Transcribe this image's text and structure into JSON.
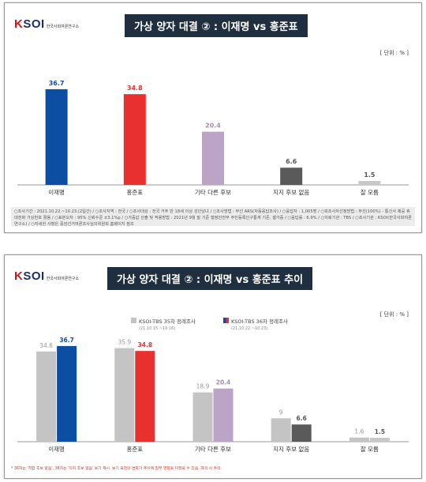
{
  "panel1": {
    "logo": {
      "main_k": "K",
      "main_rest": "SOI",
      "sub": "한국사회여론연구소"
    },
    "title": "가상 양자 대결 ② : 이재명 vs 홍준표",
    "unit": "[ 단위 : % ]",
    "notes": "○조사기간 : 2021.10.22.~10.23.(2일간) / ○조사지역 : 전국 / ○조사대상 : 전국 거주 만 18세 이상 성인남녀 / ○조사방법 : 무선 ARS(자동응답조사) / ○응답자 : 1,005명 / ○피조사자선정방법 : 무선(100%) - 통신사 제공 휴대전화 가상번호 활용 / ○표본오차 : 95% 신뢰수준 ±3.1%p / ○가중값 산출 및 적용방법 : 2021년 9월 말 기준 행정안전부 주민등록인구통계 기준, 셀가중 / ○응답률 : 6.9% / ○의뢰기관 : TBS / ○조사기관 : KSOI(한국사회여론연구소) / ○자세한 사항은 중앙선거여론조사심의위원회 홈페이지 참조"
  },
  "panel2": {
    "logo": {
      "main_k": "K",
      "main_rest": "SOI",
      "sub": "한국사회여론연구소"
    },
    "title": "가상 양자 대결 ② : 이재명 vs 홍준표 추이",
    "unit": "[ 단위 : % ]",
    "legend": [
      {
        "label": "KSOI-TBS 35차 정례조사",
        "sub": "(21.10.15.~10.16)"
      },
      {
        "label": "KSOI-TBS 36차 정례조사",
        "sub": "(21.10.22.~10.23)"
      }
    ],
    "footnote": "* 36차는 '적합 후보 없음', 36차는 '지지 후보 없음' 보기 제시. 보기 표현의 변화가 추이에 일부 영향을 미쳤을 수 있음. 해석 시 주의."
  },
  "colors": {
    "lee": "#0b4ea2",
    "hong": "#e8302e",
    "other": "#bba4c6",
    "none": "#5a5a5a",
    "dk": "#c8c8c8",
    "prev": "#c4c4c4"
  },
  "chart_data": [
    {
      "type": "bar",
      "title": "가상 양자 대결 ② : 이재명 vs 홍준표",
      "unit": "[ 단위 : % ]",
      "categories": [
        "이재명",
        "홍준표",
        "기타 다른 후보",
        "지지 후보 없음",
        "잘 모름"
      ],
      "values": [
        36.7,
        34.8,
        20.4,
        6.6,
        1.5
      ],
      "colors": [
        "#0b4ea2",
        "#e8302e",
        "#bba4c6",
        "#5a5a5a",
        "#c8c8c8"
      ]
    },
    {
      "type": "bar",
      "title": "가상 양자 대결 ② : 이재명 vs 홍준표 추이",
      "unit": "[ 단위 : % ]",
      "categories": [
        "이재명",
        "홍준표",
        "기타 다른 후보",
        "지지 후보 없음",
        "잘 모름"
      ],
      "series": [
        {
          "name": "KSOI-TBS 35차 정례조사",
          "values": [
            34.6,
            35.9,
            18.9,
            9.0,
            1.6
          ]
        },
        {
          "name": "KSOI-TBS 36차 정례조사",
          "values": [
            36.7,
            34.8,
            20.4,
            6.6,
            1.5
          ]
        }
      ],
      "colors36": [
        "#0b4ea2",
        "#e8302e",
        "#bba4c6",
        "#5a5a5a",
        "#c8c8c8"
      ],
      "colors35": [
        "#c4c4c4",
        "#c4c4c4",
        "#c4c4c4",
        "#c4c4c4",
        "#c4c4c4"
      ]
    }
  ]
}
